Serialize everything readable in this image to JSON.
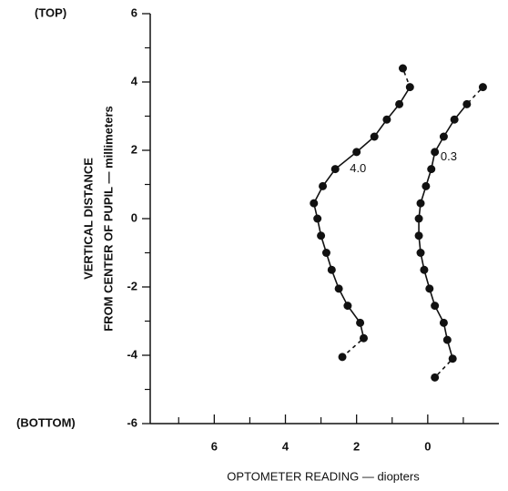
{
  "chart_data": {
    "type": "line",
    "top_label": "(TOP)",
    "bottom_label": "(BOTTOM)",
    "y_label": [
      "VERTICAL DISTANCE",
      "FROM CENTER OF PUPIL — millimeters"
    ],
    "x_label": "OPTOMETER READING — diopters",
    "xlim": [
      7.8,
      -2
    ],
    "xticks": [
      6,
      4,
      2,
      0
    ],
    "xminorticks": [
      7,
      5,
      3,
      1,
      -1
    ],
    "ylim": [
      -6,
      6
    ],
    "yticks": [
      6,
      4,
      2,
      0,
      -2,
      -4,
      -6
    ],
    "yminorticks": [
      5,
      3,
      1,
      -1,
      -3,
      -5
    ],
    "dashed_ends": true,
    "series": [
      {
        "name": "4.0",
        "color": "#111111",
        "x": [
          0.7,
          0.5,
          0.8,
          1.15,
          1.5,
          2.0,
          2.6,
          2.95,
          3.2,
          3.1,
          3.0,
          2.85,
          2.7,
          2.5,
          2.25,
          1.9,
          1.8,
          2.4
        ],
        "values": [
          4.4,
          3.85,
          3.35,
          2.9,
          2.4,
          1.95,
          1.45,
          0.95,
          0.45,
          0,
          -0.5,
          -1.0,
          -1.5,
          -2.05,
          -2.55,
          -3.05,
          -3.5,
          -4.05
        ]
      },
      {
        "name": "0.3",
        "color": "#111111",
        "x": [
          -1.55,
          -1.1,
          -0.75,
          -0.45,
          -0.2,
          -0.1,
          0.05,
          0.2,
          0.25,
          0.25,
          0.2,
          0.1,
          -0.05,
          -0.2,
          -0.45,
          -0.55,
          -0.7,
          -0.2
        ],
        "values": [
          3.85,
          3.35,
          2.9,
          2.4,
          1.95,
          1.45,
          0.95,
          0.45,
          0,
          -0.5,
          -1.0,
          -1.5,
          -2.05,
          -2.55,
          -3.05,
          -3.55,
          -4.1,
          -4.65
        ]
      }
    ]
  }
}
